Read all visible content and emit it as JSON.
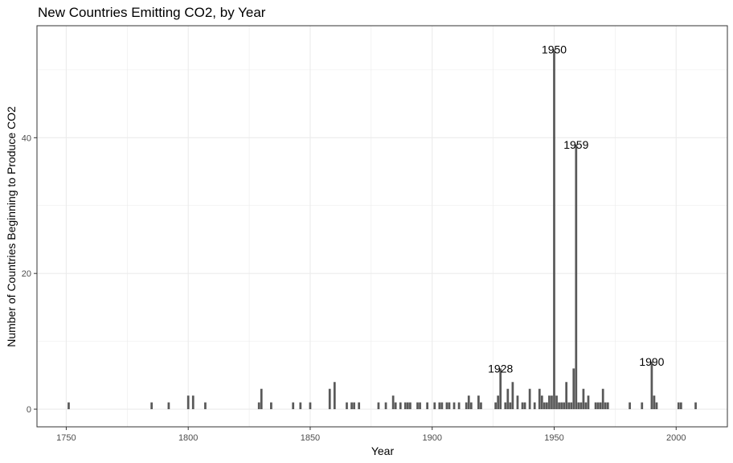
{
  "chart_data": {
    "type": "bar",
    "title": "New Countries Emitting CO2, by Year",
    "xlabel": "Year",
    "ylabel": "Number of Countries Beginning to Produce CO2",
    "xlim": [
      1738,
      2021
    ],
    "ylim": [
      -2.6,
      56.5
    ],
    "x_ticks": [
      1750,
      1800,
      1850,
      1900,
      1950,
      2000
    ],
    "y_ticks": [
      0,
      20,
      40
    ],
    "grid": true,
    "bar_color": "#595959",
    "x": [
      1751,
      1785,
      1792,
      1800,
      1802,
      1807,
      1829,
      1830,
      1834,
      1843,
      1846,
      1850,
      1858,
      1860,
      1865,
      1867,
      1868,
      1870,
      1878,
      1881,
      1884,
      1885,
      1887,
      1889,
      1890,
      1891,
      1894,
      1895,
      1898,
      1901,
      1903,
      1904,
      1906,
      1907,
      1909,
      1911,
      1914,
      1915,
      1916,
      1919,
      1920,
      1926,
      1927,
      1928,
      1930,
      1931,
      1932,
      1933,
      1935,
      1937,
      1938,
      1940,
      1942,
      1944,
      1945,
      1946,
      1947,
      1948,
      1949,
      1950,
      1951,
      1952,
      1953,
      1954,
      1955,
      1956,
      1957,
      1958,
      1959,
      1960,
      1961,
      1962,
      1963,
      1964,
      1967,
      1968,
      1969,
      1970,
      1971,
      1972,
      1981,
      1986,
      1990,
      1991,
      1992,
      2001,
      2002,
      2008
    ],
    "values": [
      1,
      1,
      1,
      2,
      2,
      1,
      1,
      3,
      1,
      1,
      1,
      1,
      3,
      4,
      1,
      1,
      1,
      1,
      1,
      1,
      2,
      1,
      1,
      1,
      1,
      1,
      1,
      1,
      1,
      1,
      1,
      1,
      1,
      1,
      1,
      1,
      1,
      2,
      1,
      2,
      1,
      1,
      2,
      6,
      1,
      3,
      1,
      4,
      2,
      1,
      1,
      3,
      1,
      3,
      2,
      1,
      1,
      2,
      2,
      53,
      2,
      1,
      1,
      1,
      4,
      1,
      1,
      6,
      39,
      1,
      1,
      3,
      1,
      2,
      1,
      1,
      1,
      3,
      1,
      1,
      1,
      1,
      7,
      2,
      1,
      1,
      1,
      1
    ],
    "annotations": [
      {
        "label": "1928",
        "x": 1928,
        "y": 6
      },
      {
        "label": "1950",
        "x": 1950,
        "y": 53
      },
      {
        "label": "1959",
        "x": 1959,
        "y": 39
      },
      {
        "label": "1990",
        "x": 1990,
        "y": 7
      }
    ]
  }
}
